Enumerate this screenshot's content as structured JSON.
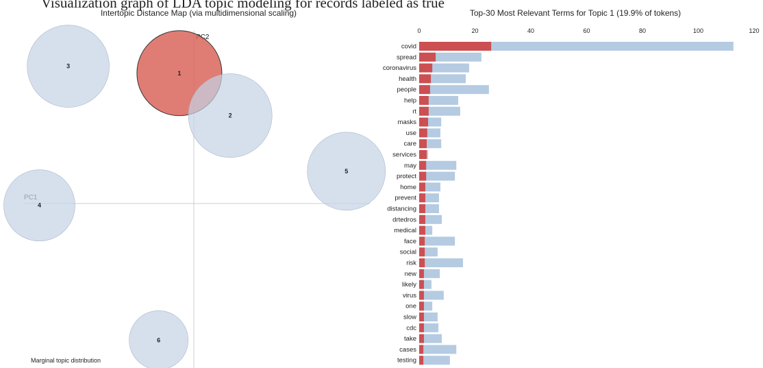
{
  "caption": "Visualization graph of LDA topic modeling for records labeled as true",
  "chart_data": [
    {
      "type": "bubble",
      "title": "Intertopic Distance Map (via multidimensional scaling)",
      "xlabel": "PC1",
      "ylabel": "PC2",
      "note": "Marginal topic distribution",
      "labels": [
        "3",
        "1",
        "2",
        "5",
        "4",
        "6"
      ],
      "x": [
        -0.2,
        -0.023,
        0.058,
        0.243,
        -0.246,
        -0.056
      ],
      "y": [
        0.217,
        0.206,
        0.139,
        0.051,
        -0.003,
        -0.216
      ],
      "sizes": [
        18.6,
        19.9,
        19.3,
        16.8,
        14.0,
        9.6
      ],
      "colors": [
        "#c5d3e6",
        "#d9665c",
        "#c5d3e6",
        "#c5d3e6",
        "#c5d3e6",
        "#c5d3e6"
      ],
      "xlim": [
        -0.3,
        0.3
      ],
      "ylim": [
        -0.26,
        0.3
      ]
    },
    {
      "type": "hbar",
      "title": "Top-30 Most Relevant Terms for Topic 1 (19.9% of tokens)",
      "categories": [
        "covid",
        "spread",
        "coronavirus",
        "health",
        "people",
        "help",
        "rt",
        "masks",
        "use",
        "care",
        "services",
        "may",
        "protect",
        "home",
        "prevent",
        "distancing",
        "drtedros",
        "medical",
        "face",
        "social",
        "risk",
        "new",
        "likely",
        "virus",
        "one",
        "slow",
        "cdc",
        "take",
        "cases",
        "testing"
      ],
      "series": [
        {
          "color": "#b4cbe2",
          "values": [
            112.6,
            22.3,
            17.9,
            16.7,
            25,
            14,
            14.7,
            7.9,
            7.6,
            7.9,
            3.2,
            13.3,
            12.8,
            7.6,
            7.1,
            7.1,
            8.1,
            4.7,
            12.8,
            6.6,
            15.7,
            7.4,
            4.4,
            8.8,
            4.7,
            6.6,
            6.9,
            8.1,
            13.3,
            11
          ]
        },
        {
          "color": "#cc4f52",
          "values": [
            25.8,
            5.9,
            4.7,
            4.2,
            3.9,
            3.4,
            3.4,
            3.2,
            2.9,
            2.7,
            2.7,
            2.5,
            2.5,
            2.2,
            2.2,
            2.2,
            2.2,
            2.2,
            2,
            2,
            2,
            1.7,
            1.7,
            1.7,
            1.7,
            1.7,
            1.7,
            1.7,
            1.5,
            1.5
          ]
        }
      ],
      "xlim": [
        0,
        120
      ],
      "xticks": [
        0,
        20,
        40,
        60,
        80,
        100,
        120
      ]
    }
  ]
}
